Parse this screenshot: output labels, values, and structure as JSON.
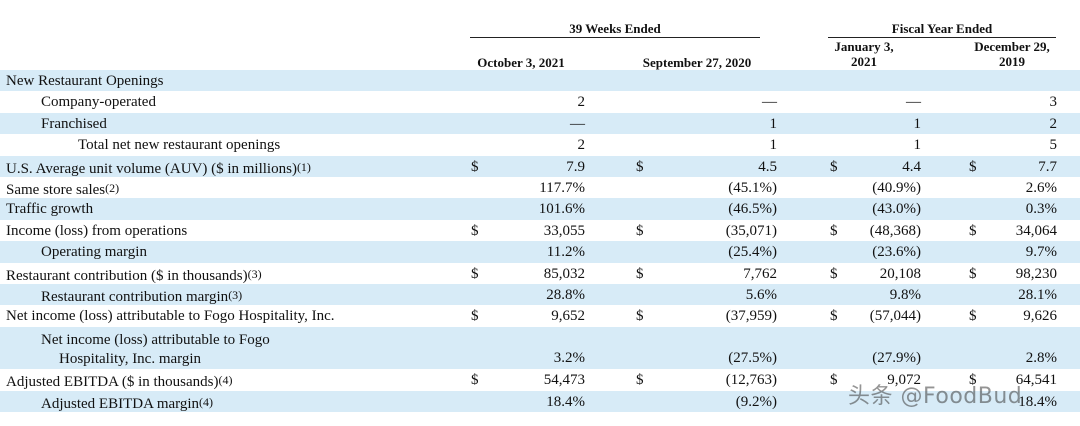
{
  "headers": {
    "group_39_weeks": "39 Weeks Ended",
    "group_fiscal_year": "Fiscal Year Ended",
    "col1": "October 3, 2021",
    "col2": "September 27, 2020",
    "col3_line1": "January 3,",
    "col3_line2": "2021",
    "col4_line1": "December 29,",
    "col4_line2": "2019"
  },
  "rows": [
    {
      "label": "New Restaurant Openings",
      "c1": "",
      "c2": "",
      "c3": "",
      "c4": ""
    },
    {
      "label": "Company-operated",
      "c1": "2",
      "c2": "—",
      "c3": "—",
      "c4": "3"
    },
    {
      "label": "Franchised",
      "c1": "—",
      "c2": "1",
      "c3": "1",
      "c4": "2"
    },
    {
      "label": "Total net new restaurant openings",
      "c1": "2",
      "c2": "1",
      "c3": "1",
      "c4": "5"
    },
    {
      "label": "U.S. Average unit volume (AUV) ($ in millions)",
      "fn": "(1)",
      "d1": "$",
      "c1": "7.9",
      "d2": "$",
      "c2": "4.5",
      "d3": "$",
      "c3": "4.4",
      "d4": "$",
      "c4": "7.7"
    },
    {
      "label": "Same store sales",
      "fn": "(2)",
      "c1": "117.7%",
      "c2": "(45.1%)",
      "c3": "(40.9%)",
      "c4": "2.6%"
    },
    {
      "label": "Traffic growth",
      "c1": "101.6%",
      "c2": "(46.5%)",
      "c3": "(43.0%)",
      "c4": "0.3%"
    },
    {
      "label": "Income (loss) from operations",
      "d1": "$",
      "c1": "33,055",
      "d2": "$",
      "c2": "(35,071)",
      "d3": "$",
      "c3": "(48,368)",
      "d4": "$",
      "c4": "34,064"
    },
    {
      "label": "Operating margin",
      "c1": "11.2%",
      "c2": "(25.4%)",
      "c3": "(23.6%)",
      "c4": "9.7%"
    },
    {
      "label": "Restaurant contribution ($ in thousands)",
      "fn": "(3)",
      "d1": "$",
      "c1": "85,032",
      "d2": "$",
      "c2": "7,762",
      "d3": "$",
      "c3": "20,108",
      "d4": "$",
      "c4": "98,230"
    },
    {
      "label": "Restaurant contribution margin",
      "fn": "(3)",
      "c1": "28.8%",
      "c2": "5.6%",
      "c3": "9.8%",
      "c4": "28.1%"
    },
    {
      "label": "Net income (loss) attributable to Fogo Hospitality, Inc.",
      "d1": "$",
      "c1": "9,652",
      "d2": "$",
      "c2": "(37,959)",
      "d3": "$",
      "c3": "(57,044)",
      "d4": "$",
      "c4": "9,626"
    },
    {
      "label_line1": "Net income (loss) attributable to Fogo",
      "label_line2": "Hospitality, Inc. margin",
      "c1": "3.2%",
      "c2": "(27.5%)",
      "c3": "(27.9%)",
      "c4": "2.8%"
    },
    {
      "label": "Adjusted EBITDA ($ in thousands)",
      "fn": "(4)",
      "d1": "$",
      "c1": "54,473",
      "d2": "$",
      "c2": "(12,763)",
      "d3": "$",
      "c3": "9,072",
      "d4": "$",
      "c4": "64,541"
    },
    {
      "label": "Adjusted EBITDA margin",
      "fn": "(4)",
      "c1": "18.4%",
      "c2": "(9.2%)",
      "c3": "",
      "c4": "18.4%"
    }
  ],
  "watermark": "头条 @FoodBud"
}
